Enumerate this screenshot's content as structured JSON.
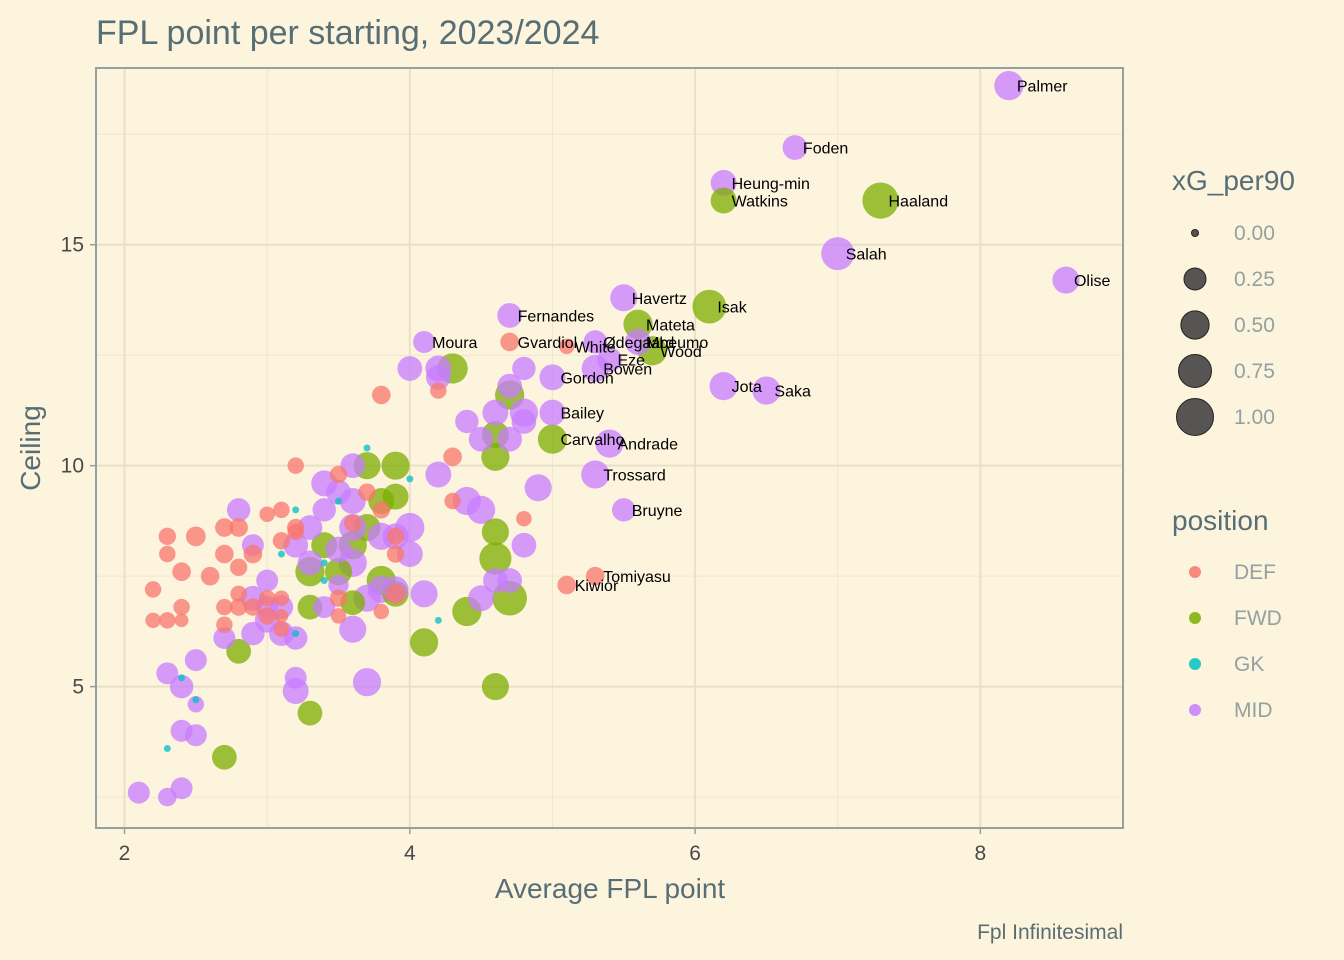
{
  "chart_data": {
    "type": "scatter",
    "title": "FPL point per starting, 2023/2024",
    "xlabel": "Average FPL point",
    "ylabel": "Ceiling",
    "caption": "Fpl Infinitesimal",
    "xlim": [
      1.8,
      9.0
    ],
    "ylim": [
      1.8,
      19.0
    ],
    "x_ticks": [
      2,
      4,
      6,
      8
    ],
    "y_ticks": [
      5,
      10,
      15
    ],
    "grid": true,
    "size_variable": "xG_per90",
    "color_variable": "position",
    "colors": {
      "DEF": "#f8766d",
      "FWD": "#7cae00",
      "GK": "#00bfc4",
      "MID": "#c77cff"
    },
    "legend_size": {
      "title": "xG_per90",
      "values": [
        0.0,
        0.25,
        0.5,
        0.75,
        1.0
      ],
      "labels": [
        "0.00",
        "0.25",
        "0.50",
        "0.75",
        "1.00"
      ]
    },
    "legend_color": {
      "title": "position",
      "entries": [
        "DEF",
        "FWD",
        "GK",
        "MID"
      ]
    },
    "labeled_points": [
      {
        "name": "Palmer",
        "position": "MID",
        "x": 8.2,
        "y": 18.6,
        "xg": 0.55
      },
      {
        "name": "Foden",
        "position": "MID",
        "x": 6.7,
        "y": 17.2,
        "xg": 0.35
      },
      {
        "name": "Heung-min",
        "position": "MID",
        "x": 6.2,
        "y": 16.4,
        "xg": 0.4
      },
      {
        "name": "Watkins",
        "position": "FWD",
        "x": 6.2,
        "y": 16.0,
        "xg": 0.4
      },
      {
        "name": "Haaland",
        "position": "FWD",
        "x": 7.3,
        "y": 16.0,
        "xg": 0.95
      },
      {
        "name": "Salah",
        "position": "MID",
        "x": 7.0,
        "y": 14.8,
        "xg": 0.75
      },
      {
        "name": "Olise",
        "position": "MID",
        "x": 8.6,
        "y": 14.2,
        "xg": 0.45
      },
      {
        "name": "Havertz",
        "position": "MID",
        "x": 5.5,
        "y": 13.8,
        "xg": 0.45
      },
      {
        "name": "Isak",
        "position": "FWD",
        "x": 6.1,
        "y": 13.6,
        "xg": 0.8
      },
      {
        "name": "Fernandes",
        "position": "MID",
        "x": 4.7,
        "y": 13.4,
        "xg": 0.35
      },
      {
        "name": "Mateta",
        "position": "FWD",
        "x": 5.6,
        "y": 13.2,
        "xg": 0.55
      },
      {
        "name": "Moura",
        "position": "MID",
        "x": 4.1,
        "y": 12.8,
        "xg": 0.25
      },
      {
        "name": "Gvardiol",
        "position": "DEF",
        "x": 4.7,
        "y": 12.8,
        "xg": 0.15
      },
      {
        "name": "White",
        "position": "DEF",
        "x": 5.1,
        "y": 12.7,
        "xg": 0.08
      },
      {
        "name": "Ødegaard",
        "position": "MID",
        "x": 5.3,
        "y": 12.8,
        "xg": 0.3
      },
      {
        "name": "Mbeumo",
        "position": "MID",
        "x": 5.6,
        "y": 12.8,
        "xg": 0.4
      },
      {
        "name": "Wood",
        "position": "FWD",
        "x": 5.7,
        "y": 12.6,
        "xg": 0.55
      },
      {
        "name": "Eze",
        "position": "MID",
        "x": 5.4,
        "y": 12.4,
        "xg": 0.35
      },
      {
        "name": "Bowen",
        "position": "MID",
        "x": 5.3,
        "y": 12.2,
        "xg": 0.45
      },
      {
        "name": "Gordon",
        "position": "MID",
        "x": 5.0,
        "y": 12.0,
        "xg": 0.4
      },
      {
        "name": "Jota",
        "position": "MID",
        "x": 6.2,
        "y": 11.8,
        "xg": 0.5
      },
      {
        "name": "Saka",
        "position": "MID",
        "x": 6.5,
        "y": 11.7,
        "xg": 0.5
      },
      {
        "name": "Bailey",
        "position": "MID",
        "x": 5.0,
        "y": 11.2,
        "xg": 0.4
      },
      {
        "name": "Carvalho",
        "position": "FWD",
        "x": 5.0,
        "y": 10.6,
        "xg": 0.55
      },
      {
        "name": "Andrade",
        "position": "MID",
        "x": 5.4,
        "y": 10.5,
        "xg": 0.5
      },
      {
        "name": "Trossard",
        "position": "MID",
        "x": 5.3,
        "y": 9.8,
        "xg": 0.5
      },
      {
        "name": "Bruyne",
        "position": "MID",
        "x": 5.5,
        "y": 9.0,
        "xg": 0.3
      },
      {
        "name": "Tomiyasu",
        "position": "DEF",
        "x": 5.3,
        "y": 7.5,
        "xg": 0.15
      },
      {
        "name": "Kiwior",
        "position": "DEF",
        "x": 5.1,
        "y": 7.3,
        "xg": 0.15
      }
    ],
    "points": [
      {
        "position": "DEF",
        "x": 2.2,
        "y": 7.2,
        "xg": 0.1
      },
      {
        "position": "DEF",
        "x": 2.2,
        "y": 6.5,
        "xg": 0.08
      },
      {
        "position": "DEF",
        "x": 2.3,
        "y": 8.4,
        "xg": 0.12
      },
      {
        "position": "DEF",
        "x": 2.3,
        "y": 8.0,
        "xg": 0.1
      },
      {
        "position": "DEF",
        "x": 2.3,
        "y": 6.5,
        "xg": 0.1
      },
      {
        "position": "DEF",
        "x": 2.4,
        "y": 7.6,
        "xg": 0.15
      },
      {
        "position": "DEF",
        "x": 2.4,
        "y": 6.8,
        "xg": 0.1
      },
      {
        "position": "DEF",
        "x": 2.4,
        "y": 6.5,
        "xg": 0.05
      },
      {
        "position": "DEF",
        "x": 2.5,
        "y": 8.4,
        "xg": 0.18
      },
      {
        "position": "DEF",
        "x": 2.6,
        "y": 7.5,
        "xg": 0.15
      },
      {
        "position": "DEF",
        "x": 2.7,
        "y": 8.6,
        "xg": 0.15
      },
      {
        "position": "DEF",
        "x": 2.7,
        "y": 8.0,
        "xg": 0.15
      },
      {
        "position": "DEF",
        "x": 2.7,
        "y": 6.8,
        "xg": 0.1
      },
      {
        "position": "DEF",
        "x": 2.7,
        "y": 6.4,
        "xg": 0.1
      },
      {
        "position": "DEF",
        "x": 2.8,
        "y": 8.6,
        "xg": 0.15
      },
      {
        "position": "DEF",
        "x": 2.8,
        "y": 7.7,
        "xg": 0.12
      },
      {
        "position": "DEF",
        "x": 2.8,
        "y": 7.1,
        "xg": 0.1
      },
      {
        "position": "DEF",
        "x": 2.8,
        "y": 6.8,
        "xg": 0.12
      },
      {
        "position": "DEF",
        "x": 2.9,
        "y": 8.0,
        "xg": 0.15
      },
      {
        "position": "DEF",
        "x": 2.9,
        "y": 6.8,
        "xg": 0.12
      },
      {
        "position": "DEF",
        "x": 3.0,
        "y": 8.9,
        "xg": 0.08
      },
      {
        "position": "DEF",
        "x": 3.0,
        "y": 7.0,
        "xg": 0.1
      },
      {
        "position": "DEF",
        "x": 3.0,
        "y": 6.6,
        "xg": 0.12
      },
      {
        "position": "DEF",
        "x": 3.1,
        "y": 9.0,
        "xg": 0.1
      },
      {
        "position": "DEF",
        "x": 3.1,
        "y": 8.3,
        "xg": 0.12
      },
      {
        "position": "DEF",
        "x": 3.1,
        "y": 7.0,
        "xg": 0.08
      },
      {
        "position": "DEF",
        "x": 3.1,
        "y": 6.6,
        "xg": 0.05
      },
      {
        "position": "DEF",
        "x": 3.1,
        "y": 6.3,
        "xg": 0.08
      },
      {
        "position": "DEF",
        "x": 3.2,
        "y": 10.0,
        "xg": 0.1
      },
      {
        "position": "DEF",
        "x": 3.2,
        "y": 8.6,
        "xg": 0.12
      },
      {
        "position": "DEF",
        "x": 3.2,
        "y": 8.5,
        "xg": 0.1
      },
      {
        "position": "DEF",
        "x": 3.5,
        "y": 9.8,
        "xg": 0.12
      },
      {
        "position": "DEF",
        "x": 3.5,
        "y": 7.0,
        "xg": 0.12
      },
      {
        "position": "DEF",
        "x": 3.5,
        "y": 6.6,
        "xg": 0.08
      },
      {
        "position": "DEF",
        "x": 3.6,
        "y": 8.7,
        "xg": 0.12
      },
      {
        "position": "DEF",
        "x": 3.7,
        "y": 9.4,
        "xg": 0.12
      },
      {
        "position": "DEF",
        "x": 3.8,
        "y": 11.6,
        "xg": 0.15
      },
      {
        "position": "DEF",
        "x": 3.8,
        "y": 9.0,
        "xg": 0.12
      },
      {
        "position": "DEF",
        "x": 3.8,
        "y": 6.7,
        "xg": 0.08
      },
      {
        "position": "DEF",
        "x": 3.9,
        "y": 8.4,
        "xg": 0.12
      },
      {
        "position": "DEF",
        "x": 3.9,
        "y": 8.0,
        "xg": 0.12
      },
      {
        "position": "DEF",
        "x": 3.9,
        "y": 7.1,
        "xg": 0.18
      },
      {
        "position": "DEF",
        "x": 4.2,
        "y": 11.7,
        "xg": 0.1
      },
      {
        "position": "DEF",
        "x": 4.3,
        "y": 10.2,
        "xg": 0.15
      },
      {
        "position": "DEF",
        "x": 4.3,
        "y": 9.2,
        "xg": 0.1
      },
      {
        "position": "DEF",
        "x": 4.8,
        "y": 8.8,
        "xg": 0.08
      },
      {
        "position": "FWD",
        "x": 2.7,
        "y": 3.4,
        "xg": 0.35
      },
      {
        "position": "FWD",
        "x": 2.8,
        "y": 5.8,
        "xg": 0.35
      },
      {
        "position": "FWD",
        "x": 3.3,
        "y": 7.6,
        "xg": 0.55
      },
      {
        "position": "FWD",
        "x": 3.3,
        "y": 6.8,
        "xg": 0.35
      },
      {
        "position": "FWD",
        "x": 3.3,
        "y": 4.4,
        "xg": 0.35
      },
      {
        "position": "FWD",
        "x": 3.4,
        "y": 8.2,
        "xg": 0.4
      },
      {
        "position": "FWD",
        "x": 3.5,
        "y": 7.6,
        "xg": 0.45
      },
      {
        "position": "FWD",
        "x": 3.6,
        "y": 8.2,
        "xg": 0.5
      },
      {
        "position": "FWD",
        "x": 3.6,
        "y": 6.9,
        "xg": 0.35
      },
      {
        "position": "FWD",
        "x": 3.7,
        "y": 10.0,
        "xg": 0.45
      },
      {
        "position": "FWD",
        "x": 3.7,
        "y": 8.6,
        "xg": 0.45
      },
      {
        "position": "FWD",
        "x": 3.8,
        "y": 9.2,
        "xg": 0.4
      },
      {
        "position": "FWD",
        "x": 3.8,
        "y": 7.4,
        "xg": 0.55
      },
      {
        "position": "FWD",
        "x": 3.9,
        "y": 10.0,
        "xg": 0.5
      },
      {
        "position": "FWD",
        "x": 3.9,
        "y": 9.3,
        "xg": 0.4
      },
      {
        "position": "FWD",
        "x": 3.9,
        "y": 7.1,
        "xg": 0.4
      },
      {
        "position": "FWD",
        "x": 4.1,
        "y": 6.0,
        "xg": 0.5
      },
      {
        "position": "FWD",
        "x": 4.3,
        "y": 12.2,
        "xg": 0.6
      },
      {
        "position": "FWD",
        "x": 4.4,
        "y": 6.7,
        "xg": 0.55
      },
      {
        "position": "FWD",
        "x": 4.6,
        "y": 10.7,
        "xg": 0.45
      },
      {
        "position": "FWD",
        "x": 4.6,
        "y": 10.2,
        "xg": 0.5
      },
      {
        "position": "FWD",
        "x": 4.6,
        "y": 8.5,
        "xg": 0.45
      },
      {
        "position": "FWD",
        "x": 4.6,
        "y": 7.9,
        "xg": 0.7
      },
      {
        "position": "FWD",
        "x": 4.6,
        "y": 5.0,
        "xg": 0.45
      },
      {
        "position": "FWD",
        "x": 4.7,
        "y": 11.6,
        "xg": 0.55
      },
      {
        "position": "FWD",
        "x": 4.7,
        "y": 7.0,
        "xg": 0.85
      },
      {
        "position": "GK",
        "x": 2.3,
        "y": 3.6,
        "xg": 0.0
      },
      {
        "position": "GK",
        "x": 2.4,
        "y": 5.2,
        "xg": 0.0
      },
      {
        "position": "GK",
        "x": 2.5,
        "y": 4.7,
        "xg": 0.0
      },
      {
        "position": "GK",
        "x": 3.1,
        "y": 8.0,
        "xg": 0.0
      },
      {
        "position": "GK",
        "x": 3.2,
        "y": 9.0,
        "xg": 0.0
      },
      {
        "position": "GK",
        "x": 3.2,
        "y": 6.2,
        "xg": 0.0
      },
      {
        "position": "GK",
        "x": 3.4,
        "y": 7.8,
        "xg": 0.0
      },
      {
        "position": "GK",
        "x": 3.4,
        "y": 7.4,
        "xg": 0.0
      },
      {
        "position": "GK",
        "x": 3.5,
        "y": 9.2,
        "xg": 0.0
      },
      {
        "position": "GK",
        "x": 3.7,
        "y": 10.4,
        "xg": 0.0
      },
      {
        "position": "GK",
        "x": 4.0,
        "y": 9.7,
        "xg": 0.0
      },
      {
        "position": "GK",
        "x": 4.2,
        "y": 6.5,
        "xg": 0.0
      },
      {
        "position": "MID",
        "x": 2.1,
        "y": 2.6,
        "xg": 0.25
      },
      {
        "position": "MID",
        "x": 2.3,
        "y": 5.3,
        "xg": 0.25
      },
      {
        "position": "MID",
        "x": 2.3,
        "y": 2.5,
        "xg": 0.15
      },
      {
        "position": "MID",
        "x": 2.4,
        "y": 5.0,
        "xg": 0.3
      },
      {
        "position": "MID",
        "x": 2.4,
        "y": 4.0,
        "xg": 0.25
      },
      {
        "position": "MID",
        "x": 2.4,
        "y": 2.7,
        "xg": 0.25
      },
      {
        "position": "MID",
        "x": 2.5,
        "y": 5.6,
        "xg": 0.25
      },
      {
        "position": "MID",
        "x": 2.5,
        "y": 4.6,
        "xg": 0.1
      },
      {
        "position": "MID",
        "x": 2.5,
        "y": 3.9,
        "xg": 0.25
      },
      {
        "position": "MID",
        "x": 2.7,
        "y": 6.1,
        "xg": 0.25
      },
      {
        "position": "MID",
        "x": 2.8,
        "y": 9.0,
        "xg": 0.3
      },
      {
        "position": "MID",
        "x": 2.9,
        "y": 8.2,
        "xg": 0.25
      },
      {
        "position": "MID",
        "x": 2.9,
        "y": 7.0,
        "xg": 0.35
      },
      {
        "position": "MID",
        "x": 2.9,
        "y": 6.2,
        "xg": 0.3
      },
      {
        "position": "MID",
        "x": 3.0,
        "y": 7.4,
        "xg": 0.25
      },
      {
        "position": "MID",
        "x": 3.0,
        "y": 6.8,
        "xg": 0.25
      },
      {
        "position": "MID",
        "x": 3.0,
        "y": 6.5,
        "xg": 0.35
      },
      {
        "position": "MID",
        "x": 3.1,
        "y": 6.8,
        "xg": 0.3
      },
      {
        "position": "MID",
        "x": 3.1,
        "y": 6.2,
        "xg": 0.35
      },
      {
        "position": "MID",
        "x": 3.2,
        "y": 8.2,
        "xg": 0.35
      },
      {
        "position": "MID",
        "x": 3.2,
        "y": 6.1,
        "xg": 0.3
      },
      {
        "position": "MID",
        "x": 3.2,
        "y": 5.2,
        "xg": 0.25
      },
      {
        "position": "MID",
        "x": 3.2,
        "y": 4.9,
        "xg": 0.4
      },
      {
        "position": "MID",
        "x": 3.3,
        "y": 8.6,
        "xg": 0.35
      },
      {
        "position": "MID",
        "x": 3.3,
        "y": 7.8,
        "xg": 0.35
      },
      {
        "position": "MID",
        "x": 3.4,
        "y": 9.6,
        "xg": 0.4
      },
      {
        "position": "MID",
        "x": 3.4,
        "y": 9.0,
        "xg": 0.3
      },
      {
        "position": "MID",
        "x": 3.4,
        "y": 6.8,
        "xg": 0.25
      },
      {
        "position": "MID",
        "x": 3.5,
        "y": 9.4,
        "xg": 0.35
      },
      {
        "position": "MID",
        "x": 3.5,
        "y": 8.1,
        "xg": 0.4
      },
      {
        "position": "MID",
        "x": 3.5,
        "y": 7.3,
        "xg": 0.2
      },
      {
        "position": "MID",
        "x": 3.6,
        "y": 10.0,
        "xg": 0.35
      },
      {
        "position": "MID",
        "x": 3.6,
        "y": 9.2,
        "xg": 0.4
      },
      {
        "position": "MID",
        "x": 3.6,
        "y": 8.6,
        "xg": 0.45
      },
      {
        "position": "MID",
        "x": 3.6,
        "y": 7.8,
        "xg": 0.5
      },
      {
        "position": "MID",
        "x": 3.6,
        "y": 6.3,
        "xg": 0.45
      },
      {
        "position": "MID",
        "x": 3.7,
        "y": 7.0,
        "xg": 0.45
      },
      {
        "position": "MID",
        "x": 3.7,
        "y": 5.1,
        "xg": 0.5
      },
      {
        "position": "MID",
        "x": 3.8,
        "y": 8.4,
        "xg": 0.45
      },
      {
        "position": "MID",
        "x": 3.8,
        "y": 7.2,
        "xg": 0.45
      },
      {
        "position": "MID",
        "x": 3.9,
        "y": 8.4,
        "xg": 0.4
      },
      {
        "position": "MID",
        "x": 3.9,
        "y": 7.2,
        "xg": 0.4
      },
      {
        "position": "MID",
        "x": 4.0,
        "y": 12.2,
        "xg": 0.35
      },
      {
        "position": "MID",
        "x": 4.0,
        "y": 8.6,
        "xg": 0.55
      },
      {
        "position": "MID",
        "x": 4.0,
        "y": 8.0,
        "xg": 0.4
      },
      {
        "position": "MID",
        "x": 4.1,
        "y": 7.1,
        "xg": 0.45
      },
      {
        "position": "MID",
        "x": 4.2,
        "y": 12.2,
        "xg": 0.4
      },
      {
        "position": "MID",
        "x": 4.2,
        "y": 12.0,
        "xg": 0.35
      },
      {
        "position": "MID",
        "x": 4.2,
        "y": 9.8,
        "xg": 0.4
      },
      {
        "position": "MID",
        "x": 4.4,
        "y": 11.0,
        "xg": 0.3
      },
      {
        "position": "MID",
        "x": 4.4,
        "y": 9.2,
        "xg": 0.5
      },
      {
        "position": "MID",
        "x": 4.5,
        "y": 10.6,
        "xg": 0.35
      },
      {
        "position": "MID",
        "x": 4.5,
        "y": 9.0,
        "xg": 0.5
      },
      {
        "position": "MID",
        "x": 4.5,
        "y": 7.0,
        "xg": 0.4
      },
      {
        "position": "MID",
        "x": 4.6,
        "y": 11.2,
        "xg": 0.4
      },
      {
        "position": "MID",
        "x": 4.6,
        "y": 7.4,
        "xg": 0.35
      },
      {
        "position": "MID",
        "x": 4.7,
        "y": 11.8,
        "xg": 0.35
      },
      {
        "position": "MID",
        "x": 4.7,
        "y": 10.6,
        "xg": 0.35
      },
      {
        "position": "MID",
        "x": 4.7,
        "y": 7.4,
        "xg": 0.35
      },
      {
        "position": "MID",
        "x": 4.8,
        "y": 12.2,
        "xg": 0.3
      },
      {
        "position": "MID",
        "x": 4.8,
        "y": 11.2,
        "xg": 0.5
      },
      {
        "position": "MID",
        "x": 4.8,
        "y": 11.0,
        "xg": 0.35
      },
      {
        "position": "MID",
        "x": 4.8,
        "y": 8.2,
        "xg": 0.35
      },
      {
        "position": "MID",
        "x": 4.9,
        "y": 9.5,
        "xg": 0.45
      }
    ]
  }
}
